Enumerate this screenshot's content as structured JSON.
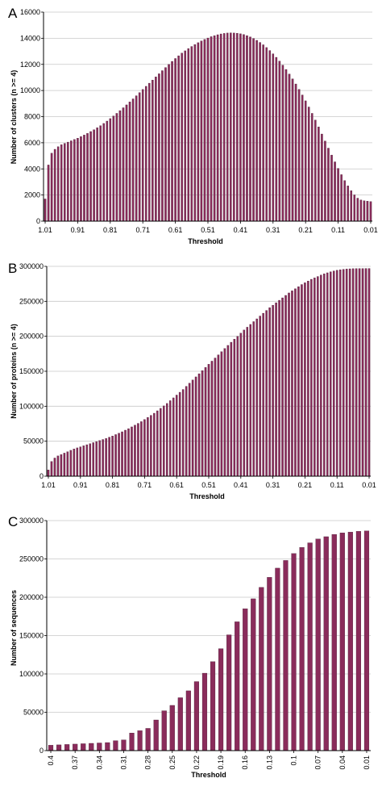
{
  "bar_color": "#8a2c5b",
  "bar_edge": "#3a0f25",
  "grid_color": "#c8c8c8",
  "chart_data": [
    {
      "panel": "A",
      "type": "bar",
      "xlabel": "Threshold",
      "ylabel": "Number of clusters (n >= 4)",
      "ylim": [
        0,
        16000
      ],
      "yticks": [
        0,
        2000,
        4000,
        6000,
        8000,
        10000,
        12000,
        14000,
        16000
      ],
      "xtick_labels": [
        "1.01",
        "0.91",
        "0.81",
        "0.71",
        "0.61",
        "0.51",
        "0.41",
        "0.31",
        "0.21",
        "0.11",
        "0.01"
      ],
      "grid": true,
      "x": [
        1.01,
        1.0,
        0.99,
        0.98,
        0.97,
        0.96,
        0.95,
        0.94,
        0.93,
        0.92,
        0.91,
        0.9,
        0.89,
        0.88,
        0.87,
        0.86,
        0.85,
        0.84,
        0.83,
        0.82,
        0.81,
        0.8,
        0.79,
        0.78,
        0.77,
        0.76,
        0.75,
        0.74,
        0.73,
        0.72,
        0.71,
        0.7,
        0.69,
        0.68,
        0.67,
        0.66,
        0.65,
        0.64,
        0.63,
        0.62,
        0.61,
        0.6,
        0.59,
        0.58,
        0.57,
        0.56,
        0.55,
        0.54,
        0.53,
        0.52,
        0.51,
        0.5,
        0.49,
        0.48,
        0.47,
        0.46,
        0.45,
        0.44,
        0.43,
        0.42,
        0.41,
        0.4,
        0.39,
        0.38,
        0.37,
        0.36,
        0.35,
        0.34,
        0.33,
        0.32,
        0.31,
        0.3,
        0.29,
        0.28,
        0.27,
        0.26,
        0.25,
        0.24,
        0.23,
        0.22,
        0.21,
        0.2,
        0.19,
        0.18,
        0.17,
        0.16,
        0.15,
        0.14,
        0.13,
        0.12,
        0.11,
        0.1,
        0.09,
        0.08,
        0.07,
        0.06,
        0.05,
        0.04,
        0.03,
        0.02,
        0.01
      ],
      "values": [
        1700,
        4300,
        5200,
        5500,
        5700,
        5850,
        5950,
        6050,
        6150,
        6250,
        6350,
        6470,
        6590,
        6720,
        6860,
        7000,
        7150,
        7310,
        7480,
        7660,
        7850,
        8050,
        8250,
        8460,
        8680,
        8900,
        9130,
        9360,
        9600,
        9840,
        10080,
        10320,
        10560,
        10800,
        11040,
        11280,
        11520,
        11760,
        12000,
        12230,
        12450,
        12660,
        12860,
        13040,
        13210,
        13370,
        13520,
        13660,
        13790,
        13910,
        14020,
        14120,
        14200,
        14270,
        14330,
        14370,
        14400,
        14410,
        14400,
        14380,
        14340,
        14280,
        14200,
        14100,
        13980,
        13840,
        13680,
        13500,
        13290,
        13060,
        12810,
        12540,
        12250,
        11940,
        11610,
        11260,
        10890,
        10500,
        10090,
        9660,
        9210,
        8740,
        8250,
        7740,
        7210,
        6670,
        6130,
        5590,
        5060,
        4540,
        4040,
        3560,
        3110,
        2700,
        2330,
        2010,
        1760,
        1620,
        1560,
        1530,
        1500
      ]
    },
    {
      "panel": "B",
      "type": "bar",
      "xlabel": "Threshold",
      "ylabel": "Number of proteins (n >= 4)",
      "ylim": [
        0,
        300000
      ],
      "yticks": [
        0,
        50000,
        100000,
        150000,
        200000,
        250000,
        300000
      ],
      "xtick_labels": [
        "1.01",
        "0.91",
        "0.81",
        "0.71",
        "0.61",
        "0.51",
        "0.41",
        "0.31",
        "0.21",
        "0.11",
        "0.01"
      ],
      "grid": true,
      "x": [
        1.01,
        1.0,
        0.99,
        0.98,
        0.97,
        0.96,
        0.95,
        0.94,
        0.93,
        0.92,
        0.91,
        0.9,
        0.89,
        0.88,
        0.87,
        0.86,
        0.85,
        0.84,
        0.83,
        0.82,
        0.81,
        0.8,
        0.79,
        0.78,
        0.77,
        0.76,
        0.75,
        0.74,
        0.73,
        0.72,
        0.71,
        0.7,
        0.69,
        0.68,
        0.67,
        0.66,
        0.65,
        0.64,
        0.63,
        0.62,
        0.61,
        0.6,
        0.59,
        0.58,
        0.57,
        0.56,
        0.55,
        0.54,
        0.53,
        0.52,
        0.51,
        0.5,
        0.49,
        0.48,
        0.47,
        0.46,
        0.45,
        0.44,
        0.43,
        0.42,
        0.41,
        0.4,
        0.39,
        0.38,
        0.37,
        0.36,
        0.35,
        0.34,
        0.33,
        0.32,
        0.31,
        0.3,
        0.29,
        0.28,
        0.27,
        0.26,
        0.25,
        0.24,
        0.23,
        0.22,
        0.21,
        0.2,
        0.19,
        0.18,
        0.17,
        0.16,
        0.15,
        0.14,
        0.13,
        0.12,
        0.11,
        0.1,
        0.09,
        0.08,
        0.07,
        0.06,
        0.05,
        0.04,
        0.03,
        0.02,
        0.01
      ],
      "values": [
        9000,
        21000,
        26000,
        29000,
        31000,
        33000,
        35000,
        37000,
        39000,
        40500,
        42000,
        43500,
        45000,
        46500,
        48000,
        49500,
        51000,
        52500,
        54000,
        55800,
        57500,
        59500,
        61500,
        63500,
        65800,
        68000,
        70500,
        73000,
        75500,
        78000,
        81000,
        84000,
        87000,
        90000,
        93500,
        97000,
        100500,
        104000,
        108000,
        112000,
        116000,
        120000,
        124000,
        128500,
        133000,
        137500,
        142000,
        146500,
        151000,
        155500,
        160000,
        164500,
        169000,
        173500,
        178000,
        182500,
        187000,
        191500,
        196000,
        200000,
        204500,
        209000,
        213000,
        217000,
        221000,
        225000,
        229000,
        233000,
        237000,
        241000,
        244500,
        248000,
        251500,
        255000,
        258500,
        262000,
        265000,
        268000,
        271000,
        274000,
        276500,
        279000,
        281500,
        283500,
        285500,
        287500,
        289300,
        290800,
        292200,
        293400,
        294400,
        295200,
        295800,
        296200,
        296500,
        296700,
        296800,
        296900,
        296900,
        297000,
        297000
      ]
    },
    {
      "panel": "C",
      "type": "bar",
      "xlabel": "Threshold",
      "ylabel": "Number of sequences",
      "ylim": [
        0,
        300000
      ],
      "yticks": [
        0,
        50000,
        100000,
        150000,
        200000,
        250000,
        300000
      ],
      "xtick_labels": [
        "0.4",
        "0.37",
        "0.34",
        "0.31",
        "0.28",
        "0.25",
        "0.22",
        "0.19",
        "0.16",
        "0.13",
        "0.1",
        "0.07",
        "0.04",
        "0.01"
      ],
      "grid": true,
      "x": [
        0.4,
        0.39,
        0.38,
        0.37,
        0.36,
        0.35,
        0.34,
        0.33,
        0.32,
        0.31,
        0.3,
        0.29,
        0.28,
        0.27,
        0.26,
        0.25,
        0.24,
        0.23,
        0.22,
        0.21,
        0.2,
        0.19,
        0.18,
        0.17,
        0.16,
        0.15,
        0.14,
        0.13,
        0.12,
        0.11,
        0.1,
        0.09,
        0.08,
        0.07,
        0.06,
        0.05,
        0.04,
        0.03,
        0.02,
        0.01
      ],
      "values": [
        7000,
        7500,
        8000,
        8500,
        9000,
        9500,
        10000,
        10500,
        13000,
        14000,
        23000,
        26000,
        29000,
        40000,
        52000,
        59000,
        69000,
        78000,
        90000,
        101000,
        116000,
        133000,
        151000,
        168000,
        185000,
        198000,
        213000,
        226000,
        238000,
        248000,
        257000,
        265000,
        271000,
        276000,
        279000,
        282000,
        284000,
        285000,
        286000,
        286500
      ]
    }
  ]
}
